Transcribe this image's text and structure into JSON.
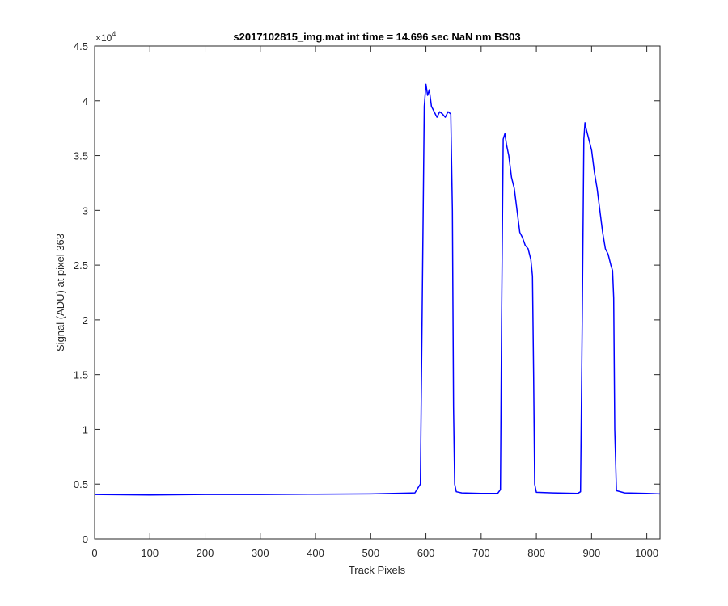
{
  "chart_data": {
    "type": "line",
    "title": "s2017102815_img.mat int time = 14.696 sec  NaN nm BS03",
    "xlabel": "Track Pixels",
    "ylabel": "Signal (ADU) at pixel 363",
    "xlim": [
      0,
      1024
    ],
    "ylim": [
      0,
      45000
    ],
    "x_ticks": [
      0,
      100,
      200,
      300,
      400,
      500,
      600,
      700,
      800,
      900,
      1000
    ],
    "x_tick_labels": [
      "0",
      "100",
      "200",
      "300",
      "400",
      "500",
      "600",
      "700",
      "800",
      "900",
      "1000"
    ],
    "y_ticks": [
      0,
      5000,
      10000,
      15000,
      20000,
      25000,
      30000,
      35000,
      40000,
      45000
    ],
    "y_tick_labels": [
      "0",
      "0.5",
      "1",
      "1.5",
      "2",
      "2.5",
      "3",
      "3.5",
      "4",
      "4.5"
    ],
    "y_exponent_base": "×10",
    "y_exponent_power": "4",
    "grid": false,
    "series": [
      {
        "color": "#0000ff",
        "x": [
          0,
          100,
          200,
          300,
          400,
          500,
          580,
          590,
          594,
          597,
          600,
          603,
          606,
          610,
          615,
          620,
          625,
          630,
          635,
          640,
          645,
          648,
          650,
          652,
          655,
          665,
          700,
          730,
          735,
          737,
          740,
          743,
          746,
          750,
          755,
          760,
          765,
          770,
          775,
          780,
          785,
          790,
          793,
          795,
          797,
          800,
          830,
          875,
          880,
          883,
          886,
          888,
          890,
          895,
          900,
          905,
          910,
          915,
          920,
          925,
          930,
          935,
          938,
          940,
          942,
          945,
          960,
          1000,
          1024
        ],
        "y": [
          4050,
          4000,
          4050,
          4050,
          4080,
          4100,
          4200,
          5000,
          25000,
          39500,
          41500,
          40500,
          41000,
          39500,
          39000,
          38500,
          39000,
          38800,
          38500,
          39000,
          38800,
          30000,
          12000,
          5000,
          4300,
          4200,
          4150,
          4150,
          4500,
          20000,
          36500,
          37000,
          36000,
          35000,
          33000,
          32000,
          30000,
          28000,
          27500,
          26800,
          26500,
          25500,
          24000,
          15000,
          5000,
          4250,
          4200,
          4150,
          4300,
          20000,
          36500,
          38000,
          37500,
          36500,
          35500,
          33500,
          32000,
          30000,
          28000,
          26500,
          26000,
          25000,
          24500,
          22000,
          10000,
          4400,
          4200,
          4150,
          4100
        ]
      }
    ]
  }
}
